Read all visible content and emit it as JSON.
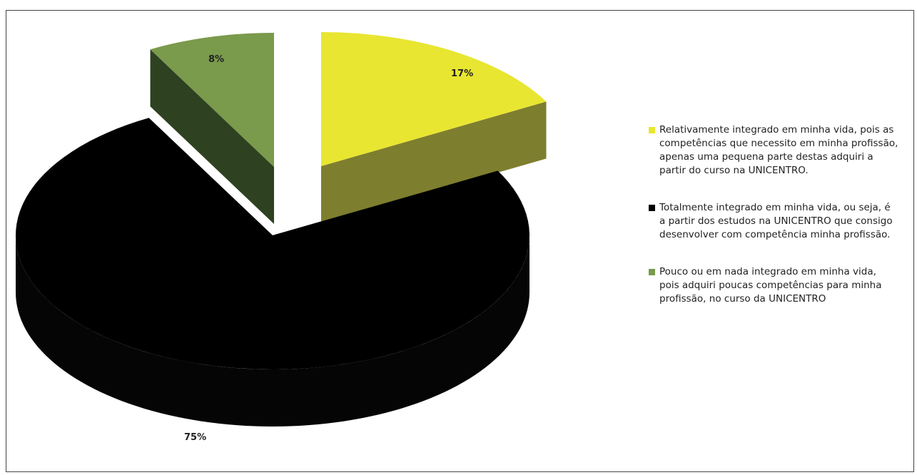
{
  "chart_data": {
    "type": "pie",
    "style": "3d-exploded",
    "slices": [
      {
        "label": "Relativamente integrado em minha vida, pois as competências que necessito em minha profissão, apenas uma pequena parte destas adquiri a partir do curso na UNICENTRO.",
        "value": 17,
        "value_label": "17%",
        "color": "#E8E631"
      },
      {
        "label": "Totalmente integrado em minha vida, ou seja, é a partir dos estudos na UNICENTRO que consigo desenvolver com competência minha profissão.",
        "value": 75,
        "value_label": "75%",
        "color": "#000000"
      },
      {
        "label": "Pouco ou em nada integrado em minha vida, pois adquiri poucas competências para minha profissão, no curso da UNICENTRO",
        "value": 8,
        "value_label": "8%",
        "color": "#7A9A4C"
      }
    ],
    "legend_position": "right"
  }
}
